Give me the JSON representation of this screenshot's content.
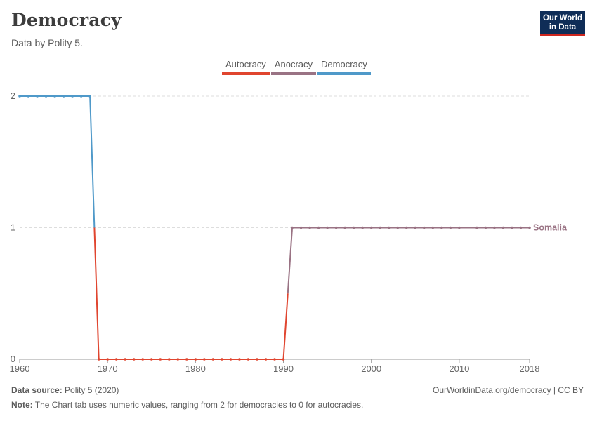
{
  "header": {
    "title": "Democracy",
    "subtitle": "Data by Polity 5."
  },
  "logo": {
    "line1": "Our World",
    "line2": "in Data"
  },
  "legend": [
    {
      "label": "Autocracy",
      "color": "#e0452f"
    },
    {
      "label": "Anocracy",
      "color": "#9a7384"
    },
    {
      "label": "Democracy",
      "color": "#4f99c9"
    }
  ],
  "chart_data": {
    "type": "line",
    "title": "Democracy",
    "subtitle": "Data by Polity 5.",
    "xlim": [
      1960,
      2018
    ],
    "ylim": [
      0,
      2
    ],
    "x_ticks": [
      1960,
      1970,
      1980,
      1990,
      2000,
      2010,
      2018
    ],
    "y_ticks": [
      0,
      1,
      2
    ],
    "grid": true,
    "series": [
      {
        "name": "Somalia",
        "x": [
          1960,
          1961,
          1962,
          1963,
          1964,
          1965,
          1966,
          1967,
          1968,
          1969,
          1970,
          1971,
          1972,
          1973,
          1974,
          1975,
          1976,
          1977,
          1978,
          1979,
          1980,
          1981,
          1982,
          1983,
          1984,
          1985,
          1986,
          1987,
          1988,
          1989,
          1990,
          1991,
          1992,
          1993,
          1994,
          1995,
          1996,
          1997,
          1998,
          1999,
          2000,
          2001,
          2002,
          2003,
          2004,
          2005,
          2006,
          2007,
          2008,
          2009,
          2010,
          2012,
          2013,
          2014,
          2015,
          2016,
          2017,
          2018
        ],
        "values": [
          2,
          2,
          2,
          2,
          2,
          2,
          2,
          2,
          2,
          0,
          0,
          0,
          0,
          0,
          0,
          0,
          0,
          0,
          0,
          0,
          0,
          0,
          0,
          0,
          0,
          0,
          0,
          0,
          0,
          0,
          0,
          1,
          1,
          1,
          1,
          1,
          1,
          1,
          1,
          1,
          1,
          1,
          1,
          1,
          1,
          1,
          1,
          1,
          1,
          1,
          1,
          1,
          1,
          1,
          1,
          1,
          1,
          1
        ]
      }
    ],
    "color_scale": {
      "0": "#e0452f",
      "1": "#9a7384",
      "2": "#4f99c9"
    }
  },
  "footer": {
    "source_label": "Data source:",
    "source_value": "Polity 5 (2020)",
    "url": "OurWorldinData.org/democracy | CC BY",
    "note_label": "Note:",
    "note_value": "The Chart tab uses numeric values, ranging from 2 for democracies to 0 for autocracies."
  }
}
